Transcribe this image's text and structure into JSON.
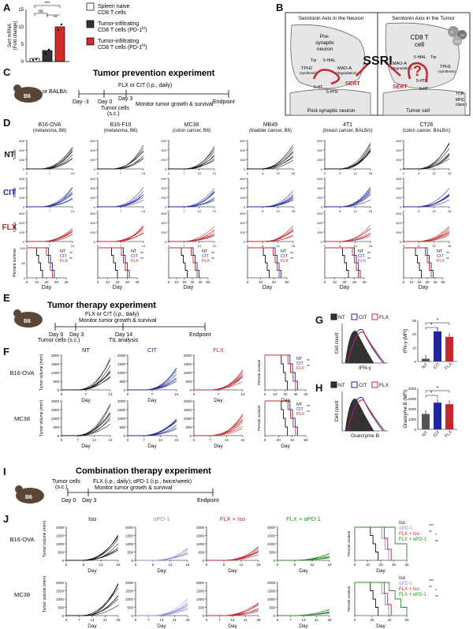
{
  "colors": {
    "nt": "#111111",
    "cit": "#1f2a9a",
    "flx": "#c1272d",
    "green": "#2a8a2a",
    "lightblue": "#8a8fd6"
  },
  "panelA": {
    "letter": "A",
    "ylabel_italic": "Sert",
    "ylabel_rest": " mRNA",
    "ylabel2": "(Fold change)",
    "yticks": [
      "0",
      "5",
      "10",
      "15"
    ],
    "sig": {
      "ns": "ns",
      "s3": "***",
      "s2": "**"
    },
    "legend": [
      "Spleen naive CD8 T cells",
      "Tumor-infiltrating CD8 T cells (PD-1lo)",
      "Tumor-infiltrating CD8 T cells (PD-1hi)"
    ],
    "legend_lines": [
      [
        "Spleen naive",
        "CD8 T cells"
      ],
      [
        "Tumor-infiltrating",
        "CD8 T cells (PD-1",
        "lo",
        ")"
      ],
      [
        "Tumor-infiltrating",
        "CD8 T cells (PD-1",
        "hi",
        ")"
      ]
    ]
  },
  "panelB": {
    "letter": "B",
    "left_title": "Serotonin Axis in the Neuron",
    "right_title": "Serotonin Axis in the Tumor",
    "presyn": [
      "Pre-",
      "synaptic",
      "neuron"
    ],
    "cd8": [
      "CD8 T",
      "cell"
    ],
    "postsyn": "Post-synaptic neuron",
    "tumorcell": "Tumor cell",
    "ssri": "SSRI",
    "sert_left": "SERT",
    "sert_right": "SERT",
    "q": "?",
    "labels": {
      "tph2": "TPH2",
      "tph2s": "(synthesis)",
      "mao": "MAO-A",
      "maod": "(degradation)",
      "trp": "Trp",
      "hiaa": "5-HIAL",
      "ht": "5-HT",
      "htr": "5-HTR",
      "tph1": "TPH1",
      "tph1s": "(synthesis)",
      "tcr": "TCR",
      "mhc": "MHC",
      "cls": "class I",
      "dc": "DC",
      "tam": "TAM",
      "b": "B"
    }
  },
  "panelC": {
    "letter": "C",
    "title": "Tumor prevention experiment",
    "mouse": "B6",
    "or": "or BALB/c",
    "drug": "FLX or CIT (i.p., daily)",
    "days": [
      "Day -3",
      "Day 0",
      "Day 3"
    ],
    "tumorcells": [
      "Tumor cells",
      "(s.c.)"
    ],
    "monitor": "Monitor tumor growth & survival",
    "endpoint": "Endpoint"
  },
  "panelD": {
    "letter": "D",
    "models": [
      {
        "name": "B16-OVA",
        "sub": "(melanoma, B6)",
        "xt": [
          "0",
          "7",
          "14"
        ]
      },
      {
        "name": "B16-F10",
        "sub": "(melanoma, B6)",
        "xt": [
          "0",
          "7",
          "14"
        ]
      },
      {
        "name": "MC38",
        "sub": "(colon cancer, B6)",
        "xt": [
          "0",
          "7",
          "14",
          "21"
        ]
      },
      {
        "name": "MB49",
        "sub": "(bladder cancer, B6)",
        "xt": [
          "0",
          "6",
          "12",
          "18"
        ]
      },
      {
        "name": "4T1",
        "sub": "(breast cancer, BALB/c)",
        "xt": [
          "0",
          "6",
          "12",
          "18"
        ]
      },
      {
        "name": "CT26",
        "sub": "(colon cancer, BALB/c)",
        "xt": [
          "0",
          "6",
          "12",
          "18"
        ]
      }
    ],
    "rows": [
      "NT",
      "CIT",
      "FLX"
    ],
    "ylabel": "Tumor volume (mm³)",
    "yt": [
      "0",
      "200",
      "400",
      "600"
    ],
    "surv_x": [
      [
        "0",
        "10",
        "20",
        "30",
        "40"
      ],
      [
        "0",
        "10",
        "20",
        "30",
        "40"
      ],
      [
        "0",
        "10",
        "20",
        "30",
        "40",
        "50"
      ],
      [
        "0",
        "20",
        "40",
        "60"
      ],
      [
        "0",
        "10",
        "20",
        "30",
        "40"
      ],
      [
        "0",
        "10",
        "20",
        "30",
        "40",
        "50"
      ]
    ],
    "surv_ylabel": "Percent survival",
    "surv_yt": [
      "0",
      "50",
      "100"
    ],
    "day": "Day",
    "legend": [
      "NT",
      "CIT",
      "FLX"
    ],
    "stars": "**"
  },
  "panelE": {
    "letter": "E",
    "title": "Tumor therapy experiment",
    "mouse": "B6",
    "drug": "FLX or CIT (i.p., daily)",
    "monitor": "Monitor tumor growth & survival",
    "days": [
      "Day 0",
      "Day 3",
      "Day 14"
    ],
    "tumorcells": "Tumor cells (s.c.)",
    "til": "TIL analysis",
    "endpoint": "Endpoint"
  },
  "panelF": {
    "letter": "F",
    "cols": [
      "NT",
      "CIT",
      "FLX"
    ],
    "rows": [
      "B16-OVA",
      "MC38"
    ],
    "ylabel": "Tumor volume (mm³)",
    "yt1": [
      "0",
      "500",
      "1000",
      "1500",
      "2000"
    ],
    "yt2": [
      "0",
      "500",
      "1000",
      "1500",
      "2000"
    ],
    "xt1": [
      "0",
      "7",
      "14"
    ],
    "xt2": [
      "0",
      "7",
      "14",
      "21"
    ],
    "day": "Day",
    "surv_ylabel": "Percent survival",
    "surv_x1": [
      "0",
      "10",
      "20",
      "30",
      "40"
    ],
    "surv_x2": [
      "0",
      "20",
      "40",
      "60"
    ]
  },
  "panelG": {
    "letter": "G",
    "legend": [
      "NT",
      "CIT",
      "FLX"
    ],
    "ylabel": "Cell count",
    "xlabel": "IFN-γ",
    "bar_ylabel": "IFN-γ (MFI)",
    "yt": [
      "0",
      "10",
      "20",
      "30"
    ],
    "cats": [
      "NT",
      "CIT",
      "FLX"
    ],
    "values": [
      2,
      22,
      18
    ],
    "sig": "*"
  },
  "panelH": {
    "letter": "H",
    "legend": [
      "NT",
      "CIT",
      "FLX"
    ],
    "ylabel": "Cell count",
    "xlabel": "Granzyme B",
    "bar_ylabel": "Granzyme B (MFI)",
    "yt": [
      "0",
      "1000",
      "2000",
      "3000",
      "4000"
    ],
    "cats": [
      "NT",
      "CIT",
      "FLX"
    ],
    "values": [
      1500,
      2600,
      2450
    ],
    "sig": "*"
  },
  "panelI": {
    "letter": "I",
    "title": "Combination therapy experiment",
    "mouse": "B6",
    "tumorcells": [
      "Tumor cells",
      "(s.c.)"
    ],
    "drug": "FLX (i.p., daily); αPD-1 (i.p., twice/week)",
    "monitor": "Monitor tumor growth & survival",
    "days": [
      "Day 0",
      "Day 3"
    ],
    "endpoint": "Endpoint"
  },
  "panelJ": {
    "letter": "J",
    "cols": [
      "Iso",
      "αPD-1",
      "FLX + Iso",
      "FLX + αPD-1"
    ],
    "rows": [
      "B16-OVA",
      "MC38"
    ],
    "ylabel": "Tumor volume (mm³)",
    "yt1": [
      "0",
      "500",
      "1000",
      "1500",
      "2000"
    ],
    "yt2": [
      "0",
      "500",
      "1000",
      "1500",
      "2000"
    ],
    "xt1": [
      "0",
      "6",
      "12",
      "18"
    ],
    "xt2": [
      "0",
      "7",
      "14",
      "21",
      "28"
    ],
    "day": "Day",
    "surv_ylabel": "Percent survival",
    "surv_x1": [
      "0",
      "10",
      "20",
      "30",
      "40"
    ],
    "surv_x2": [
      "0",
      "20",
      "40",
      "60"
    ],
    "legend": [
      "Iso",
      "αPD-1",
      "FLX + Iso",
      "FLX + αPD-1"
    ],
    "stars": [
      "***",
      "**",
      "*",
      "**"
    ]
  }
}
